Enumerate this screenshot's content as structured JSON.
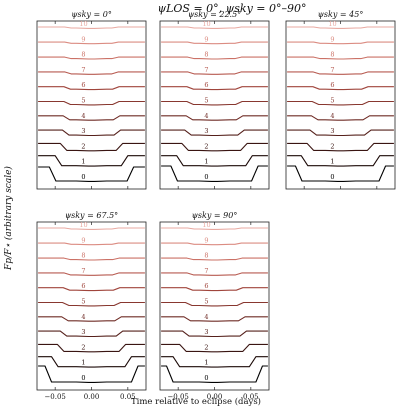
{
  "figure": {
    "suptitle": "ψLOS = 0°, ψsky = 0°–90°",
    "ylabel": "Fp/F⋆ (arbitrary scale)",
    "xlabel": "Time relative to eclipse (days)"
  },
  "chart_data": {
    "type": "line",
    "xlim": [
      -0.075,
      0.075
    ],
    "xticks": [
      "−0.05",
      "0.00",
      "0.05"
    ],
    "xtick_values": [
      -0.05,
      0.0,
      0.05
    ],
    "curve_labels": [
      "0",
      "1",
      "2",
      "3",
      "4",
      "5",
      "6",
      "7",
      "8",
      "9",
      "10"
    ],
    "colors": [
      "#000000",
      "#1c0a08",
      "#3a1512",
      "#55201b",
      "#6f2b25",
      "#88372f",
      "#a0453c",
      "#b75a50",
      "#cb7166",
      "#db8c82",
      "#e8a9a1"
    ],
    "panels": [
      {
        "title": "ψsky = 0°",
        "ingress": [
          -0.058,
          -0.05,
          -0.043,
          -0.04,
          -0.039,
          -0.038,
          -0.038,
          -0.037,
          -0.037,
          -0.037,
          -0.037
        ],
        "depth": [
          14,
          10,
          7,
          5,
          4,
          3,
          2.5,
          2,
          1.5,
          1.2,
          1
        ]
      },
      {
        "title": "ψsky = 22.5°",
        "ingress": [
          -0.06,
          -0.052,
          -0.045,
          -0.041,
          -0.039,
          -0.038,
          -0.038,
          -0.037,
          -0.037,
          -0.037,
          -0.037
        ],
        "depth": [
          15,
          10,
          7,
          5,
          4,
          3,
          2.5,
          2,
          1.5,
          1.2,
          1
        ]
      },
      {
        "title": "ψsky = 45°",
        "ingress": [
          -0.062,
          -0.054,
          -0.046,
          -0.042,
          -0.04,
          -0.039,
          -0.038,
          -0.038,
          -0.037,
          -0.037,
          -0.037
        ],
        "depth": [
          15,
          10,
          7,
          5,
          4,
          3,
          2.5,
          2,
          1.5,
          1.2,
          1
        ]
      },
      {
        "title": "ψsky = 67.5°",
        "ingress": [
          -0.064,
          -0.055,
          -0.047,
          -0.043,
          -0.041,
          -0.04,
          -0.039,
          -0.038,
          -0.038,
          -0.037,
          -0.037
        ],
        "depth": [
          16,
          10,
          7,
          5,
          4,
          3,
          2.5,
          2,
          1.5,
          1.2,
          1
        ]
      },
      {
        "title": "ψsky = 90°",
        "ingress": [
          -0.066,
          -0.057,
          -0.048,
          -0.044,
          -0.042,
          -0.04,
          -0.039,
          -0.038,
          -0.038,
          -0.037,
          -0.037
        ],
        "depth": [
          16,
          10,
          7,
          5,
          4,
          3,
          2.5,
          2,
          1.5,
          1.2,
          1
        ]
      }
    ]
  }
}
